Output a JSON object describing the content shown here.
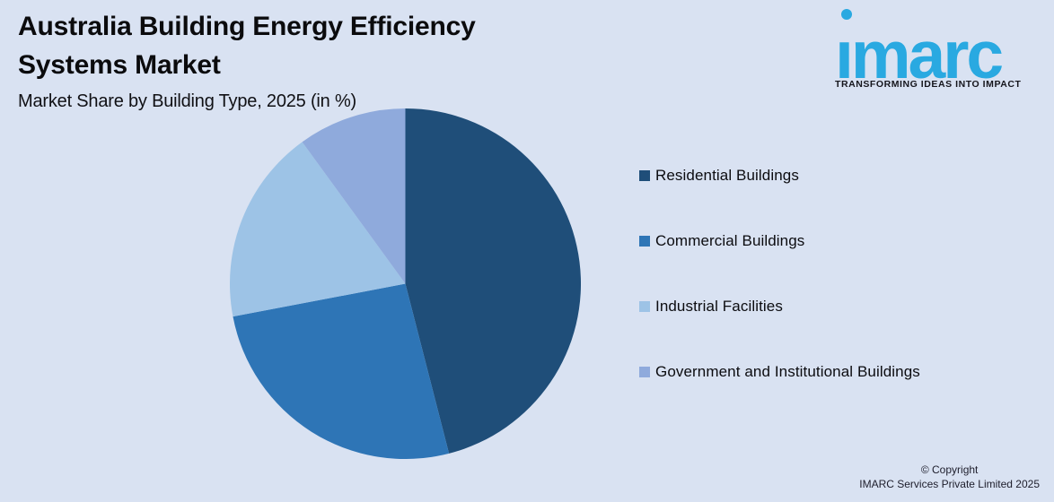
{
  "header": {
    "title_line1": "Australia Building Energy Efficiency",
    "title_line2": "Systems Market",
    "subtitle": "Market Share by Building Type, 2025 (in %)"
  },
  "logo": {
    "name": "IMARC",
    "wordmark_display": "ımarc",
    "tagline": "TRANSFORMING IDEAS INTO IMPACT",
    "brand_color": "#29A9E1"
  },
  "chart_data": {
    "type": "pie",
    "title": "Australia Building Energy Efficiency Systems Market",
    "subtitle": "Market Share by Building Type, 2025 (in %)",
    "unit": "%",
    "start_angle_deg": 0,
    "direction": "clockwise",
    "data_labels_shown": false,
    "legend_position": "right",
    "slices": [
      {
        "label": "Residential Buildings",
        "value": 46,
        "color": "#1F4E79"
      },
      {
        "label": "Commercial Buildings",
        "value": 26,
        "color": "#2E75B6"
      },
      {
        "label": "Industrial Facilities",
        "value": 18,
        "color": "#9DC3E6"
      },
      {
        "label": "Government and Institutional Buildings",
        "value": 10,
        "color": "#8FAADC"
      }
    ]
  },
  "footer": {
    "copyright_line1": "© Copyright",
    "copyright_line2": "IMARC Services Private Limited 2025"
  },
  "theme": {
    "background": "#D9E2F2",
    "text_color": "#0B0B0D"
  }
}
